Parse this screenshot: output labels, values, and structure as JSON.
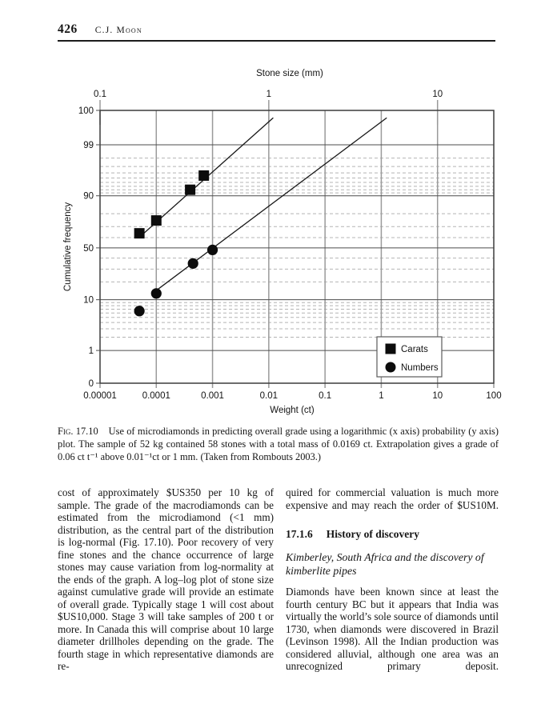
{
  "page": {
    "number": "426",
    "running_head": "C.J. Moon"
  },
  "figure": {
    "label": "Fig. 17.10",
    "caption": "Use of microdiamonds in predicting overall grade using a logarithmic (x axis) probability (y axis) plot. The sample of 52 kg contained 58 stones with a total mass of 0.0169 ct. Extrapolation gives a grade of 0.06 ct t⁻¹ above 0.01⁻¹ct or 1 mm. (Taken from Rombouts 2003.)"
  },
  "chart_data": {
    "type": "scatter",
    "x_axis": {
      "title": "Weight (ct)",
      "scale": "log",
      "range": [
        1e-05,
        100
      ],
      "ticks": [
        1e-05,
        0.0001,
        0.001,
        0.01,
        0.1,
        1,
        10,
        100
      ],
      "tick_labels": [
        "0.00001",
        "0.0001",
        "0.001",
        "0.01",
        "0.1",
        "1",
        "10",
        "100"
      ]
    },
    "top_axis": {
      "title": "Stone size (mm)",
      "ticks": [
        {
          "label": "0.1",
          "weight_ct": 1e-05
        },
        {
          "label": "1",
          "weight_ct": 0.01
        },
        {
          "label": "10",
          "weight_ct": 10
        }
      ]
    },
    "y_axis": {
      "title": "Cumulative frequency",
      "scale": "probability",
      "labeled_lines": [
        100,
        99,
        90,
        50,
        10,
        1,
        0
      ],
      "minor_lines": [
        98,
        97,
        96,
        95,
        94,
        93,
        92,
        91,
        80,
        70,
        60,
        40,
        30,
        20,
        9,
        8,
        7,
        6,
        5,
        4,
        3,
        2
      ]
    },
    "series": [
      {
        "name": "Carats",
        "marker": "square",
        "points": [
          [
            5e-05,
            64
          ],
          [
            0.0001,
            75
          ],
          [
            0.0004,
            92
          ],
          [
            0.0007,
            95.5
          ]
        ],
        "trend_line": [
          [
            6e-05,
            64
          ],
          [
            0.012,
            99.8
          ]
        ]
      },
      {
        "name": "Numbers",
        "marker": "circle",
        "points": [
          [
            5e-05,
            6.5
          ],
          [
            0.0001,
            13
          ],
          [
            0.00045,
            35
          ],
          [
            0.001,
            48
          ]
        ],
        "trend_line": [
          [
            8.5e-05,
            13
          ],
          [
            1.25,
            99.8
          ]
        ]
      }
    ],
    "legend": {
      "position": "lower-right",
      "items": [
        "Carats",
        "Numbers"
      ]
    }
  },
  "body": {
    "left_column": "cost of approximately $US350 per 10 kg of sample. The grade of the macrodiamonds can be estimated from the microdiamond (<1 mm) distribution, as the central part of the distribution is log-normal (Fig. 17.10). Poor recovery of very fine stones and the chance occurrence of large stones may cause variation from log-normality at the ends of the graph. A log–log plot of stone size against cumulative grade will provide an estimate of overall grade. Typically stage 1 will cost about $US10,000. Stage 3 will take samples of 200 t or more. In Canada this will comprise about 10 large diameter drillholes depending on the grade. The fourth stage in which representative diamonds are re-",
    "right_paragraph_1": "quired for commercial valuation is much more expensive and may reach the order of $US10M.",
    "section": {
      "number": "17.1.6",
      "title": "History of discovery"
    },
    "subsection_title": "Kimberley, South Africa and the discovery of kimberlite pipes",
    "right_paragraph_2": "Diamonds have been known since at least the fourth century BC but it appears that India was virtually the world’s sole source of diamonds until 1730, when diamonds were discovered in Brazil (Levinson 1998). All the Indian production was considered alluvial, although one area was an unrecognized primary deposit."
  }
}
